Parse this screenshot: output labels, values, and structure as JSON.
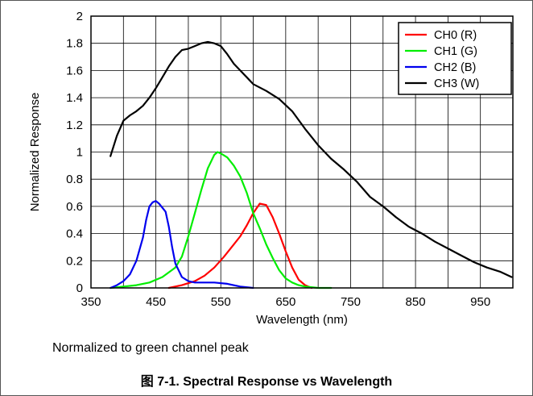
{
  "figure": {
    "note": "Normalized to green channel peak",
    "caption": "图 7-1. Spectral Response vs Wavelength"
  },
  "chart_data": {
    "type": "line",
    "title": "",
    "xlabel": "Wavelength (nm)",
    "ylabel": "Normalized Response",
    "xlim": [
      350,
      1000
    ],
    "ylim": [
      0,
      2
    ],
    "xticks": [
      350,
      450,
      550,
      650,
      750,
      850,
      950
    ],
    "yticks": [
      0,
      0.2,
      0.4,
      0.6,
      0.8,
      1,
      1.2,
      1.4,
      1.6,
      1.8,
      2
    ],
    "grid": true,
    "legend_position": "top-right",
    "series": [
      {
        "name": "CH0 (R)",
        "color": "#ff0000",
        "x": [
          470,
          490,
          510,
          525,
          540,
          555,
          570,
          580,
          590,
          600,
          610,
          620,
          630,
          640,
          650,
          660,
          670,
          680,
          690
        ],
        "y": [
          0.0,
          0.02,
          0.05,
          0.09,
          0.15,
          0.23,
          0.32,
          0.38,
          0.46,
          0.55,
          0.62,
          0.61,
          0.52,
          0.4,
          0.27,
          0.15,
          0.06,
          0.02,
          0.0
        ]
      },
      {
        "name": "CH1 (G)",
        "color": "#00ee00",
        "x": [
          380,
          400,
          420,
          440,
          460,
          480,
          490,
          500,
          510,
          520,
          530,
          540,
          545,
          550,
          560,
          570,
          580,
          590,
          600,
          610,
          620,
          630,
          640,
          650,
          660,
          670,
          680,
          700,
          720
        ],
        "y": [
          0.0,
          0.01,
          0.02,
          0.04,
          0.08,
          0.15,
          0.23,
          0.38,
          0.55,
          0.72,
          0.88,
          0.98,
          1.0,
          0.99,
          0.96,
          0.9,
          0.82,
          0.7,
          0.55,
          0.44,
          0.32,
          0.22,
          0.13,
          0.07,
          0.04,
          0.02,
          0.01,
          0.0,
          0.0
        ]
      },
      {
        "name": "CH2 (B)",
        "color": "#0000ee",
        "x": [
          380,
          390,
          400,
          410,
          420,
          430,
          435,
          440,
          445,
          450,
          455,
          460,
          465,
          470,
          475,
          480,
          490,
          500,
          510,
          520,
          540,
          560,
          580,
          600
        ],
        "y": [
          0.0,
          0.02,
          0.05,
          0.1,
          0.2,
          0.37,
          0.5,
          0.6,
          0.63,
          0.64,
          0.62,
          0.59,
          0.56,
          0.45,
          0.3,
          0.18,
          0.08,
          0.05,
          0.04,
          0.04,
          0.04,
          0.03,
          0.01,
          0.0
        ]
      },
      {
        "name": "CH3 (W)",
        "color": "#000000",
        "x": [
          380,
          390,
          400,
          410,
          420,
          430,
          440,
          450,
          460,
          470,
          480,
          490,
          500,
          510,
          520,
          530,
          540,
          550,
          560,
          570,
          580,
          590,
          600,
          620,
          640,
          660,
          680,
          700,
          720,
          740,
          760,
          780,
          800,
          820,
          840,
          860,
          880,
          900,
          920,
          940,
          960,
          980,
          998
        ],
        "y": [
          0.97,
          1.12,
          1.23,
          1.27,
          1.3,
          1.34,
          1.4,
          1.47,
          1.55,
          1.63,
          1.7,
          1.75,
          1.76,
          1.78,
          1.8,
          1.81,
          1.8,
          1.78,
          1.72,
          1.65,
          1.6,
          1.55,
          1.5,
          1.45,
          1.39,
          1.3,
          1.17,
          1.05,
          0.95,
          0.87,
          0.78,
          0.67,
          0.6,
          0.52,
          0.45,
          0.4,
          0.34,
          0.29,
          0.24,
          0.19,
          0.15,
          0.12,
          0.08
        ]
      }
    ]
  }
}
